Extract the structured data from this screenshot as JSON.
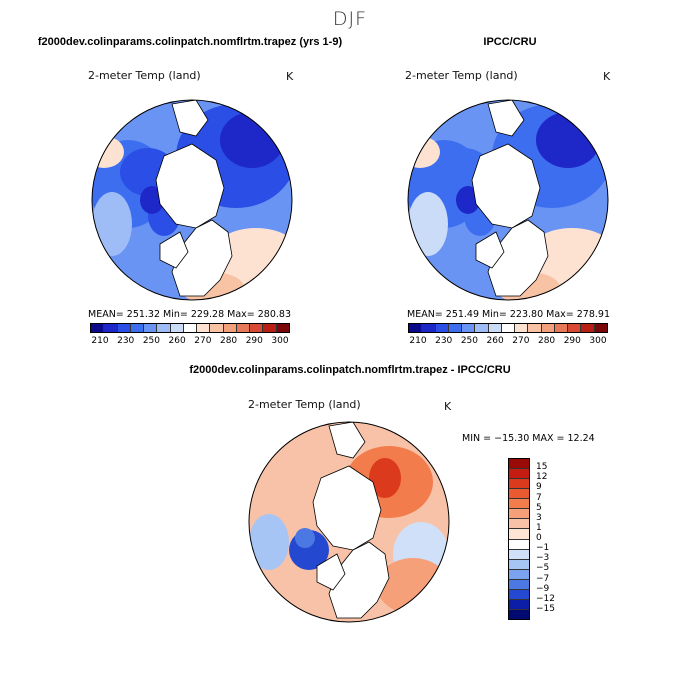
{
  "season": "DJF",
  "chart_data": [
    {
      "type": "heatmap",
      "projection": "north polar stereographic",
      "title": "f2000dev.colinparams.colinpatch.nomflrtm.trapez (yrs 1-9)",
      "variable": "2-meter Temp (land)",
      "units": "K",
      "stats": {
        "mean": "251.32",
        "min": "229.28",
        "max": "280.83"
      },
      "stats_text": "MEAN= 251.32   Min= 229.28   Max= 280.83",
      "colorbar_ticks": [
        "210",
        "230",
        "250",
        "260",
        "270",
        "280",
        "290",
        "300"
      ],
      "colorbar_colors": [
        "#0a0a8a",
        "#1e28c8",
        "#2a4ee6",
        "#3d6ef0",
        "#6a94f4",
        "#9ebcf6",
        "#cbdcf8",
        "#ffffff",
        "#fde2d2",
        "#f8c2a4",
        "#f2a07c",
        "#e8785a",
        "#d84a34",
        "#b81e14",
        "#7a0808"
      ]
    },
    {
      "type": "heatmap",
      "projection": "north polar stereographic",
      "title": "IPCC/CRU",
      "variable": "2-meter Temp (land)",
      "units": "K",
      "stats": {
        "mean": "251.49",
        "min": "223.80",
        "max": "278.91"
      },
      "stats_text": "MEAN= 251.49   Min= 223.80   Max= 278.91",
      "colorbar_ticks": [
        "210",
        "230",
        "250",
        "260",
        "270",
        "280",
        "290",
        "300"
      ],
      "colorbar_colors": [
        "#0a0a8a",
        "#1e28c8",
        "#2a4ee6",
        "#3d6ef0",
        "#6a94f4",
        "#9ebcf6",
        "#cbdcf8",
        "#ffffff",
        "#fde2d2",
        "#f8c2a4",
        "#f2a07c",
        "#e8785a",
        "#d84a34",
        "#b81e14",
        "#7a0808"
      ]
    },
    {
      "type": "heatmap",
      "projection": "north polar stereographic",
      "title": "f2000dev.colinparams.colinpatch.nomflrtm.trapez - IPCC/CRU",
      "variable": "2-meter Temp (land)",
      "units": "K",
      "stats": {
        "min": "-15.30",
        "max": "12.24"
      },
      "stats_text": "MIN = −15.30  MAX =  12.24",
      "colorbar_ticks": [
        "15",
        "12",
        "9",
        "7",
        "5",
        "3",
        "1",
        "0",
        "−1",
        "−3",
        "−5",
        "−7",
        "−9",
        "−12",
        "−15"
      ],
      "colorbar_colors": [
        "#9a0a06",
        "#c41c10",
        "#dc3a1c",
        "#ea5a30",
        "#f27c4c",
        "#f6a07a",
        "#f8c2a8",
        "#fde4d4",
        "#ffffff",
        "#cfe0f8",
        "#a6c4f4",
        "#7aa2ee",
        "#4c78e4",
        "#2448d0",
        "#0c1ea8",
        "#000a70"
      ]
    }
  ]
}
